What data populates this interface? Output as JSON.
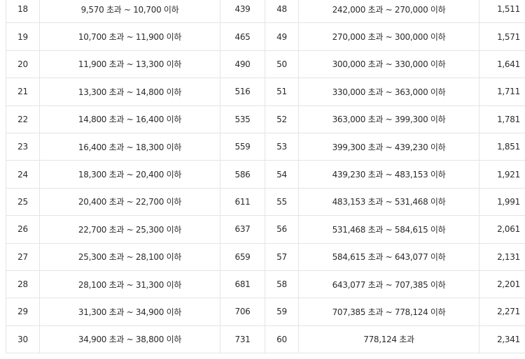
{
  "table": {
    "rows": [
      {
        "grade_left": "18",
        "range_left": "9,570 초과 ~ 10,700 이하",
        "amount_left": "439",
        "grade_right": "48",
        "range_right": "242,000 초과 ~ 270,000 이하",
        "amount_right": "1,511"
      },
      {
        "grade_left": "19",
        "range_left": "10,700 초과 ~ 11,900 이하",
        "amount_left": "465",
        "grade_right": "49",
        "range_right": "270,000 초과 ~ 300,000 이하",
        "amount_right": "1,571"
      },
      {
        "grade_left": "20",
        "range_left": "11,900 초과 ~ 13,300 이하",
        "amount_left": "490",
        "grade_right": "50",
        "range_right": "300,000 초과 ~ 330,000 이하",
        "amount_right": "1,641"
      },
      {
        "grade_left": "21",
        "range_left": "13,300 초과 ~ 14,800 이하",
        "amount_left": "516",
        "grade_right": "51",
        "range_right": "330,000 초과 ~ 363,000 이하",
        "amount_right": "1,711"
      },
      {
        "grade_left": "22",
        "range_left": "14,800 초과 ~ 16,400 이하",
        "amount_left": "535",
        "grade_right": "52",
        "range_right": "363,000 초과 ~ 399,300 이하",
        "amount_right": "1,781"
      },
      {
        "grade_left": "23",
        "range_left": "16,400 초과 ~ 18,300 이하",
        "amount_left": "559",
        "grade_right": "53",
        "range_right": "399,300 초과 ~ 439,230 이하",
        "amount_right": "1,851"
      },
      {
        "grade_left": "24",
        "range_left": "18,300 초과 ~ 20,400 이하",
        "amount_left": "586",
        "grade_right": "54",
        "range_right": "439,230 초과 ~ 483,153 이하",
        "amount_right": "1,921"
      },
      {
        "grade_left": "25",
        "range_left": "20,400 초과 ~ 22,700 이하",
        "amount_left": "611",
        "grade_right": "55",
        "range_right": "483,153 초과 ~ 531,468 이하",
        "amount_right": "1,991"
      },
      {
        "grade_left": "26",
        "range_left": "22,700 초과 ~ 25,300 이하",
        "amount_left": "637",
        "grade_right": "56",
        "range_right": "531,468 초과 ~ 584,615 이하",
        "amount_right": "2,061"
      },
      {
        "grade_left": "27",
        "range_left": "25,300 초과 ~ 28,100 이하",
        "amount_left": "659",
        "grade_right": "57",
        "range_right": "584,615 초과 ~ 643,077 이하",
        "amount_right": "2,131"
      },
      {
        "grade_left": "28",
        "range_left": "28,100 초과 ~ 31,300 이하",
        "amount_left": "681",
        "grade_right": "58",
        "range_right": "643,077 초과 ~ 707,385 이하",
        "amount_right": "2,201"
      },
      {
        "grade_left": "29",
        "range_left": "31,300 초과 ~ 34,900 이하",
        "amount_left": "706",
        "grade_right": "59",
        "range_right": "707,385 초과 ~ 778,124 이하",
        "amount_right": "2,271"
      },
      {
        "grade_left": "30",
        "range_left": "34,900 초과 ~ 38,800 이하",
        "amount_left": "731",
        "grade_right": "60",
        "range_right": "778,124 초과",
        "amount_right": "2,341"
      }
    ]
  },
  "colors": {
    "border": "#e4e4e4",
    "text": "#2b2b2b",
    "background": "#ffffff"
  }
}
